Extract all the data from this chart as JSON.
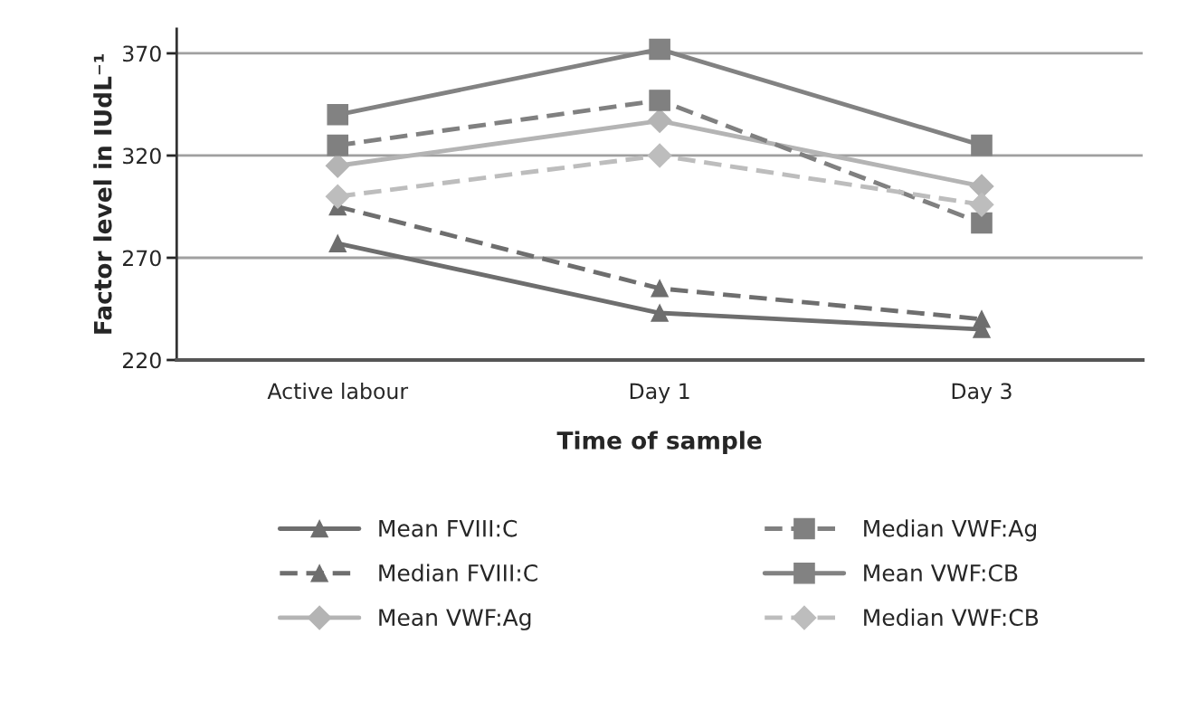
{
  "chart_data": {
    "type": "line",
    "xlabel": "Time of sample",
    "ylabel": "Factor level in IUdL⁻¹",
    "categories": [
      "Active labour",
      "Day 1",
      "Day 3"
    ],
    "ylim": [
      220,
      382
    ],
    "yticks": [
      220,
      270,
      320,
      370
    ],
    "grid": "y",
    "legend": "bottom",
    "series": [
      {
        "name": "Mean FVIII:C",
        "color": "#6e6e6e",
        "marker": "triangle",
        "line_style": "solid",
        "values": [
          277,
          243,
          235
        ]
      },
      {
        "name": "Median FVIII:C",
        "color": "#6e6e6e",
        "marker": "triangle",
        "line_style": "dashed",
        "values": [
          295,
          255,
          240
        ]
      },
      {
        "name": "Mean VWF:Ag",
        "color": "#b4b4b4",
        "marker": "diamond",
        "line_style": "solid",
        "values": [
          315,
          337,
          305
        ]
      },
      {
        "name": "Median VWF:Ag",
        "color": "#808080",
        "marker": "square",
        "line_style": "dashed",
        "values": [
          325,
          347,
          287
        ]
      },
      {
        "name": "Mean VWF:CB",
        "color": "#828282",
        "marker": "square",
        "line_style": "solid",
        "values": [
          340,
          372,
          325
        ]
      },
      {
        "name": "Median VWF:CB",
        "color": "#bdbdbd",
        "marker": "diamond",
        "line_style": "dashed",
        "values": [
          300,
          320,
          296
        ]
      }
    ]
  }
}
